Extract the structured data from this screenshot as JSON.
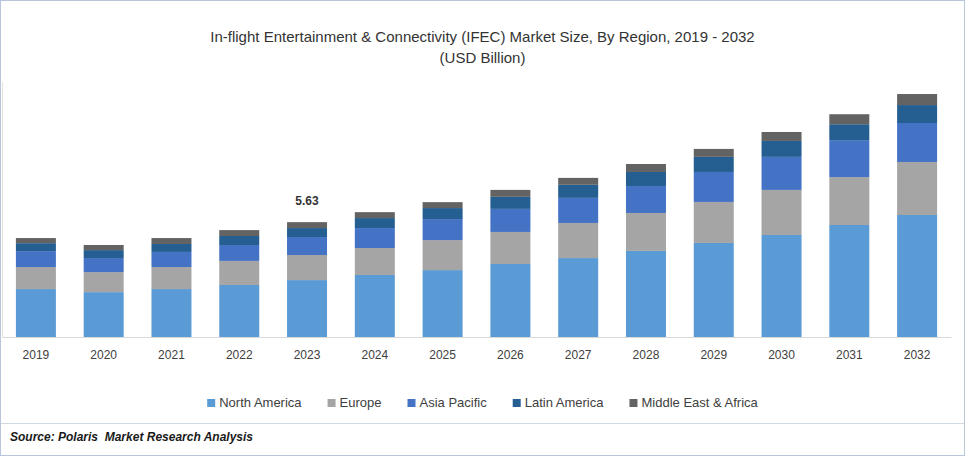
{
  "chart_data": {
    "type": "bar",
    "title": "In-flight Entertainment & Connectivity (IFEC) Market Size, By Region, 2019 - 2032",
    "subtitle": "(USD Billion)",
    "source": "Source: Polaris  Market Research Analysis",
    "categories": [
      "2019",
      "2020",
      "2021",
      "2022",
      "2023",
      "2024",
      "2025",
      "2026",
      "2027",
      "2028",
      "2029",
      "2030",
      "2031",
      "2032"
    ],
    "series": [
      {
        "name": "North America",
        "color": "#5b9bd5",
        "values": [
          2.35,
          2.2,
          2.35,
          2.55,
          2.79,
          3.04,
          3.28,
          3.58,
          3.87,
          4.22,
          4.61,
          5.0,
          5.49,
          5.98
        ]
      },
      {
        "name": "Europe",
        "color": "#a5a5a5",
        "values": [
          1.08,
          0.98,
          1.08,
          1.18,
          1.23,
          1.32,
          1.47,
          1.57,
          1.72,
          1.86,
          2.01,
          2.21,
          2.35,
          2.6
        ]
      },
      {
        "name": "Asia Pacific",
        "color": "#4472c4",
        "values": [
          0.78,
          0.69,
          0.74,
          0.78,
          0.88,
          0.98,
          1.03,
          1.13,
          1.23,
          1.32,
          1.47,
          1.62,
          1.81,
          1.91
        ]
      },
      {
        "name": "Latin America",
        "color": "#255e91",
        "values": [
          0.39,
          0.39,
          0.39,
          0.44,
          0.44,
          0.49,
          0.54,
          0.59,
          0.64,
          0.69,
          0.74,
          0.78,
          0.78,
          0.88
        ]
      },
      {
        "name": "Middle East & Africa",
        "color": "#636363",
        "values": [
          0.25,
          0.25,
          0.29,
          0.29,
          0.29,
          0.29,
          0.29,
          0.34,
          0.34,
          0.39,
          0.39,
          0.44,
          0.49,
          0.54
        ]
      }
    ],
    "annotations": [
      {
        "category": "2023",
        "value": 5.63
      }
    ],
    "ylim": [
      0,
      12.5
    ],
    "yticks": [],
    "tick_labels": "x",
    "stacked": true,
    "grid": false,
    "legend": "bottom"
  }
}
